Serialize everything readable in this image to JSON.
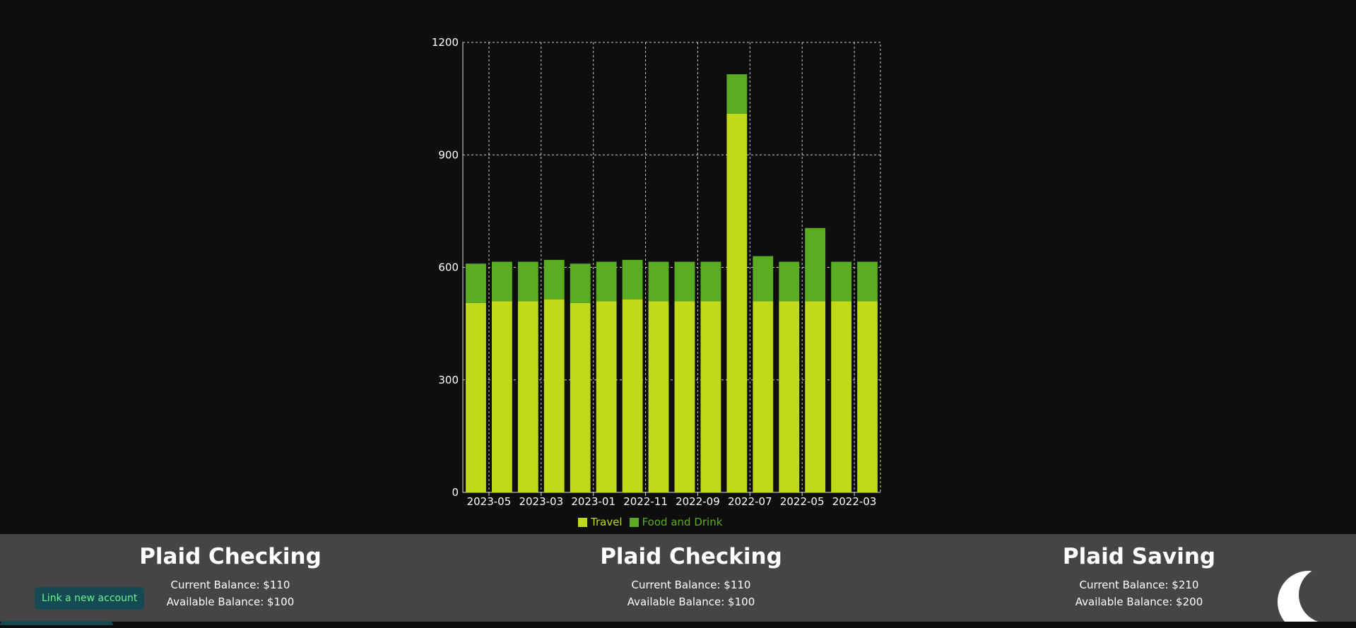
{
  "chart_data": {
    "type": "bar",
    "stacked": true,
    "categories": [
      "",
      "2023-05",
      "",
      "2023-03",
      "",
      "2023-01",
      "",
      "2022-11",
      "",
      "2022-09",
      "",
      "2022-07",
      "",
      "2022-05",
      "",
      "2022-03"
    ],
    "series": [
      {
        "name": "Travel",
        "color": "#c0d91a",
        "values": [
          505,
          510,
          510,
          515,
          505,
          510,
          515,
          510,
          510,
          510,
          1010,
          510,
          510,
          510,
          510,
          510
        ]
      },
      {
        "name": "Food and Drink",
        "color": "#5aad22",
        "values": [
          105,
          105,
          105,
          105,
          105,
          105,
          105,
          105,
          105,
          105,
          105,
          120,
          105,
          195,
          105,
          105
        ]
      }
    ],
    "ylim": [
      0,
      1200
    ],
    "yticks": [
      "0",
      "300",
      "600",
      "900",
      "1200"
    ],
    "grid": true,
    "legend_position": "bottom-center",
    "xlabel": "",
    "ylabel": ""
  },
  "accounts": [
    {
      "name": "Plaid Checking",
      "current": "Current Balance: $110",
      "available": "Available Balance: $100"
    },
    {
      "name": "Plaid Checking",
      "current": "Current Balance: $110",
      "available": "Available Balance: $100"
    },
    {
      "name": "Plaid Saving",
      "current": "Current Balance: $210",
      "available": "Available Balance: $200"
    }
  ],
  "actions": {
    "link_account": "Link a new account"
  },
  "icons": {
    "theme_toggle": "moon-icon"
  }
}
